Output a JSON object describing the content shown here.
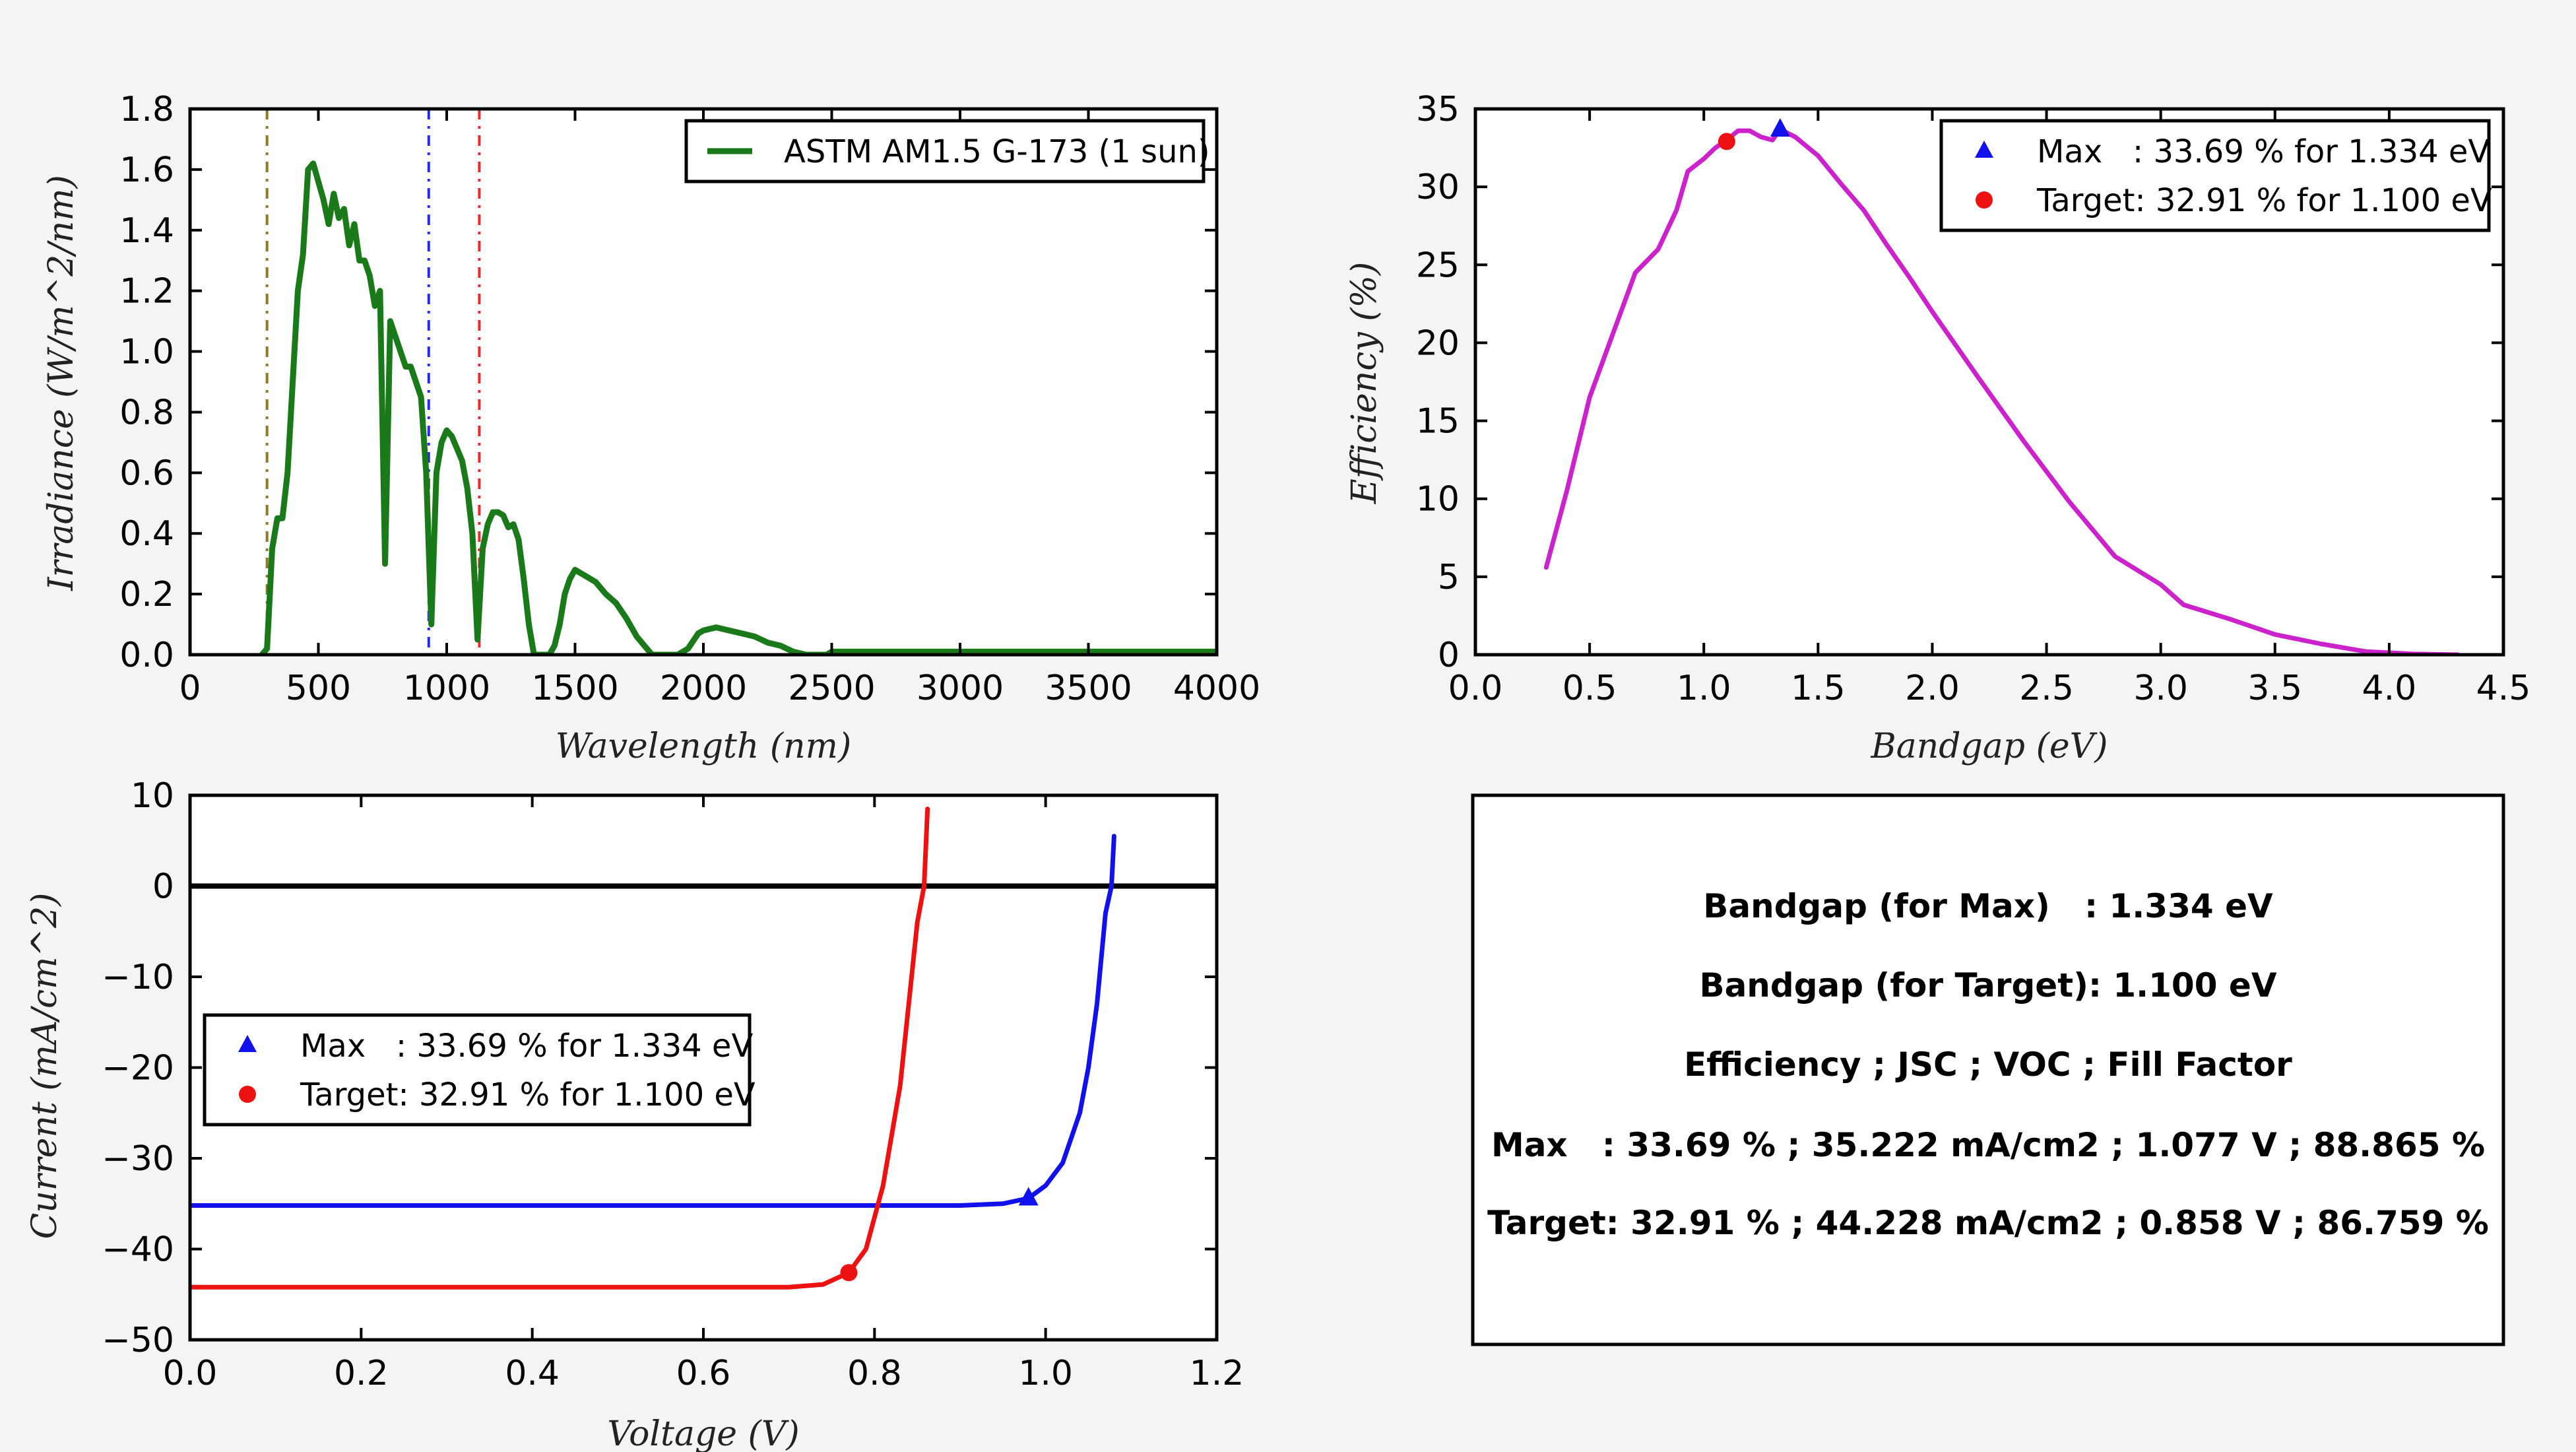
{
  "chart_data": [
    {
      "type": "line",
      "xlabel": "Wavelength (nm)",
      "ylabel": "Irradiance (W/m^2/nm)",
      "xlim": [
        0,
        4000
      ],
      "ylim": [
        0,
        1.8
      ],
      "xticks": [
        "0",
        "500",
        "1000",
        "1500",
        "2000",
        "2500",
        "3000",
        "3500",
        "4000"
      ],
      "yticks": [
        "0.0",
        "0.2",
        "0.4",
        "0.6",
        "0.8",
        "1.0",
        "1.2",
        "1.4",
        "1.6",
        "1.8"
      ],
      "legend_position": "top-right",
      "series": [
        {
          "name": "ASTM AM1.5 G-173 (1 sun)",
          "color": "#1a7a1a",
          "x": [
            280,
            300,
            320,
            340,
            360,
            380,
            400,
            420,
            440,
            460,
            480,
            500,
            520,
            540,
            560,
            580,
            600,
            620,
            640,
            660,
            680,
            700,
            720,
            740,
            760,
            780,
            800,
            820,
            840,
            860,
            880,
            900,
            920,
            940,
            960,
            980,
            1000,
            1020,
            1040,
            1060,
            1080,
            1100,
            1120,
            1140,
            1160,
            1180,
            1200,
            1220,
            1240,
            1260,
            1280,
            1300,
            1320,
            1340,
            1360,
            1380,
            1400,
            1420,
            1440,
            1460,
            1480,
            1500,
            1540,
            1580,
            1620,
            1660,
            1700,
            1740,
            1780,
            1800,
            1820,
            1860,
            1900,
            1940,
            1980,
            2000,
            2050,
            2100,
            2150,
            2200,
            2250,
            2300,
            2350,
            2400,
            2450,
            2480,
            2500,
            2600,
            2800,
            3000,
            3200,
            3400,
            3600,
            3800,
            4000
          ],
          "y": [
            0.0,
            0.02,
            0.35,
            0.45,
            0.45,
            0.6,
            0.9,
            1.2,
            1.32,
            1.6,
            1.62,
            1.56,
            1.5,
            1.42,
            1.52,
            1.44,
            1.47,
            1.35,
            1.42,
            1.3,
            1.3,
            1.25,
            1.15,
            1.2,
            0.3,
            1.1,
            1.05,
            1.0,
            0.95,
            0.95,
            0.9,
            0.85,
            0.6,
            0.1,
            0.6,
            0.7,
            0.74,
            0.72,
            0.68,
            0.64,
            0.55,
            0.4,
            0.05,
            0.35,
            0.43,
            0.47,
            0.47,
            0.46,
            0.42,
            0.43,
            0.38,
            0.25,
            0.1,
            0.0,
            0.0,
            0.0,
            0.0,
            0.03,
            0.1,
            0.2,
            0.25,
            0.28,
            0.26,
            0.24,
            0.2,
            0.17,
            0.12,
            0.06,
            0.02,
            0.0,
            0.0,
            0.0,
            0.0,
            0.02,
            0.07,
            0.08,
            0.09,
            0.08,
            0.07,
            0.06,
            0.04,
            0.03,
            0.01,
            0.0,
            0.0,
            0.0,
            0.01,
            0.01,
            0.01,
            0.01,
            0.01,
            0.01,
            0.01,
            0.01,
            0.01
          ]
        }
      ],
      "vlines": [
        {
          "x": 300,
          "color": "#8a7a2a"
        },
        {
          "x": 930,
          "color": "#2a2aee"
        },
        {
          "x": 1127,
          "color": "#ee2a2a"
        }
      ]
    },
    {
      "type": "line",
      "xlabel": "Bandgap (eV)",
      "ylabel": "Efficiency (%)",
      "xlim": [
        0,
        4.5
      ],
      "ylim": [
        0,
        35
      ],
      "xticks": [
        "0.0",
        "0.5",
        "1.0",
        "1.5",
        "2.0",
        "2.5",
        "3.0",
        "3.5",
        "4.0",
        "4.5"
      ],
      "yticks": [
        "0",
        "5",
        "10",
        "15",
        "20",
        "25",
        "30",
        "35"
      ],
      "legend_position": "top-right",
      "series": [
        {
          "name": "",
          "color": "#cc22cc",
          "x": [
            0.31,
            0.4,
            0.5,
            0.6,
            0.7,
            0.8,
            0.88,
            0.93,
            1.0,
            1.05,
            1.1,
            1.15,
            1.2,
            1.25,
            1.3,
            1.334,
            1.4,
            1.5,
            1.6,
            1.7,
            1.8,
            1.9,
            2.0,
            2.2,
            2.4,
            2.6,
            2.8,
            3.0,
            3.1,
            3.3,
            3.5,
            3.7,
            3.9,
            4.1,
            4.3
          ],
          "y": [
            5.6,
            10.5,
            16.5,
            20.5,
            24.5,
            26.0,
            28.5,
            31.0,
            31.8,
            32.5,
            33.0,
            33.6,
            33.6,
            33.2,
            33.0,
            33.69,
            33.2,
            32.0,
            30.2,
            28.5,
            26.3,
            24.2,
            22.0,
            17.8,
            13.7,
            9.8,
            6.3,
            4.5,
            3.2,
            2.3,
            1.3,
            0.7,
            0.2,
            0.05,
            0.0
          ]
        },
        {
          "name": "Max   : 33.69 % for 1.334 eV",
          "color": "#1111ee",
          "marker": "triangle",
          "x": [
            1.334
          ],
          "y": [
            33.69
          ]
        },
        {
          "name": "Target: 32.91 % for 1.100 eV",
          "color": "#ee1111",
          "marker": "circle",
          "x": [
            1.1
          ],
          "y": [
            32.91
          ]
        }
      ]
    },
    {
      "type": "line",
      "xlabel": "Voltage (V)",
      "ylabel": "Current (mA/cm^2)",
      "xlim": [
        0,
        1.2
      ],
      "ylim": [
        -50,
        10
      ],
      "xticks": [
        "0.0",
        "0.2",
        "0.4",
        "0.6",
        "0.8",
        "1.0",
        "1.2"
      ],
      "yticks": [
        "10",
        "0",
        "−10",
        "−20",
        "−30",
        "−40",
        "−50"
      ],
      "legend_position": "center-left",
      "series": [
        {
          "name": "",
          "color": "#1111ee",
          "x": [
            0.0,
            0.9,
            0.95,
            0.98,
            1.0,
            1.02,
            1.04,
            1.05,
            1.06,
            1.07,
            1.077,
            1.08
          ],
          "y": [
            -35.2,
            -35.2,
            -35.0,
            -34.4,
            -33.0,
            -30.5,
            -25.0,
            -20.0,
            -13.0,
            -3.0,
            0.0,
            5.5
          ]
        },
        {
          "name": "",
          "color": "#ee1111",
          "x": [
            0.0,
            0.7,
            0.74,
            0.77,
            0.79,
            0.81,
            0.83,
            0.84,
            0.85,
            0.858,
            0.862
          ],
          "y": [
            -44.2,
            -44.2,
            -43.9,
            -42.6,
            -40.0,
            -33.0,
            -22.0,
            -13.0,
            -4.0,
            0.0,
            8.5
          ]
        },
        {
          "name": "Max   : 33.69 % for 1.334 eV",
          "color": "#1111ee",
          "marker": "triangle",
          "x": [
            0.98
          ],
          "y": [
            -34.4
          ]
        },
        {
          "name": "Target: 32.91 % for 1.100 eV",
          "color": "#ee1111",
          "marker": "circle",
          "x": [
            0.77
          ],
          "y": [
            -42.6
          ]
        }
      ],
      "hlines": [
        {
          "y": 0,
          "color": "#000000"
        }
      ]
    }
  ],
  "info_box": {
    "lines": [
      "Bandgap (for Max)   : 1.334 eV",
      "Bandgap (for Target): 1.100 eV",
      "Efficiency ; JSC ; VOC ; Fill Factor",
      "Max   : 33.69 % ; 35.222 mA/cm2 ; 1.077 V ; 88.865 %",
      "Target: 32.91 % ; 44.228 mA/cm2 ; 0.858 V ; 86.759 %"
    ]
  }
}
